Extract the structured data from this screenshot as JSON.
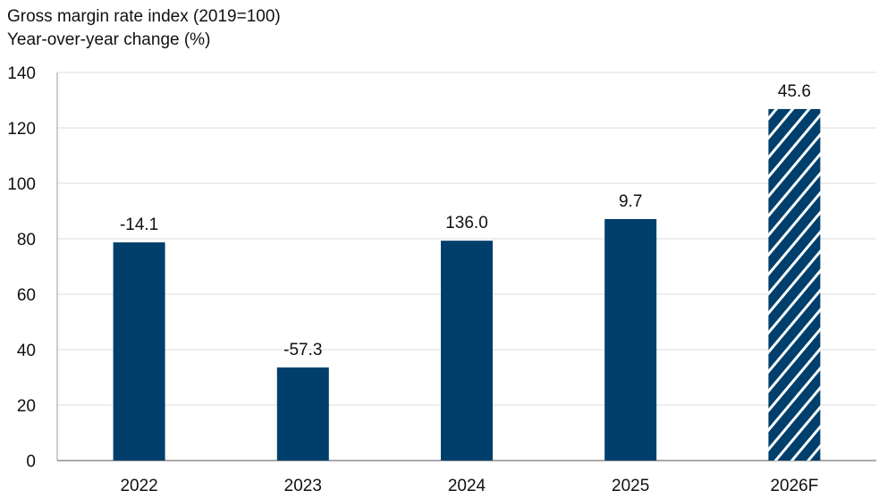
{
  "chart_data": {
    "type": "bar",
    "title": "Gross margin rate index (2019=100)",
    "subtitle": "Year-over-year change (%)",
    "categories": [
      "2022",
      "2023",
      "2024",
      "2025",
      "2026F"
    ],
    "values": [
      78.7,
      33.6,
      79.3,
      87.1,
      126.8
    ],
    "data_labels": [
      "-14.1",
      "-57.3",
      "136.0",
      "9.7",
      "45.6"
    ],
    "forecast": [
      false,
      false,
      false,
      false,
      true
    ],
    "ylim": [
      0,
      140
    ],
    "yticks": [
      0,
      20,
      40,
      60,
      80,
      100,
      120,
      140
    ],
    "grid": true,
    "colors": {
      "bar": "#003f6b",
      "grid": "#dddddd",
      "hatch": "#ffffff"
    }
  }
}
